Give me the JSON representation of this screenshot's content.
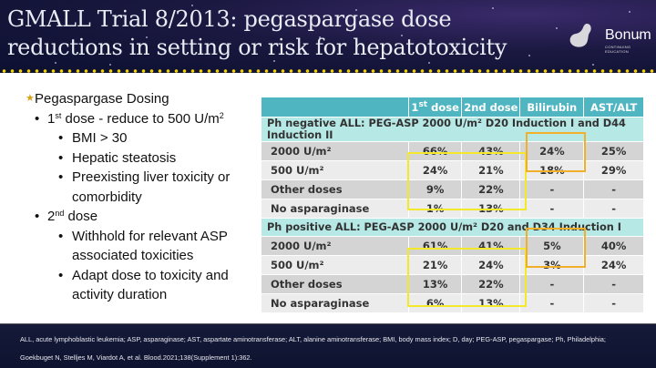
{
  "title": "GMALL Trial 8/2013: pegaspargase dose reductions in setting or risk for hepatotoxicity",
  "logo": {
    "name": "Bonum",
    "tagline": "CONTINUING EDUCATION"
  },
  "bullets": {
    "main": "Pegaspargase Dosing",
    "first": {
      "pre": "1",
      "sup": "st",
      "post": " dose - reduce to 500 U/m",
      "sup2": "2"
    },
    "first_items": [
      "BMI > 30",
      "Hepatic steatosis",
      "Preexisting liver toxicity or",
      "comorbidity"
    ],
    "second": {
      "pre": "2",
      "sup": "nd",
      "post": " dose"
    },
    "second_items": [
      "Withhold for relevant ASP",
      "associated toxicities",
      "Adapt dose to toxicity and",
      "activity duration"
    ]
  },
  "table": {
    "headers": {
      "c1_pre": "1",
      "c1_sup": "st",
      "c1_post": " dose",
      "c2": "2nd dose",
      "c3": "Bilirubin",
      "c4": "AST/ALT"
    },
    "sections": [
      {
        "title": "Ph negative ALL: PEG-ASP 2000 U/m² D20 Induction I and D44 Induction II",
        "rows": [
          [
            "2000 U/m²",
            "66%",
            "43%",
            "24%",
            "25%"
          ],
          [
            "500 U/m²",
            "24%",
            "21%",
            "18%",
            "29%"
          ],
          [
            "Other doses",
            "9%",
            "22%",
            "-",
            "-"
          ],
          [
            "No asparaginase",
            "1%",
            "13%",
            "-",
            "-"
          ]
        ]
      },
      {
        "title": "Ph positive ALL: PEG-ASP 2000 U/m² D20 and D34 Induction I",
        "rows": [
          [
            "2000 U/m²",
            "61%",
            "41%",
            "5%",
            "40%"
          ],
          [
            "500 U/m²",
            "21%",
            "24%",
            "3%",
            "24%"
          ],
          [
            "Other doses",
            "13%",
            "22%",
            "-",
            "-"
          ],
          [
            "No asparaginase",
            "6%",
            "13%",
            "-",
            "-"
          ]
        ]
      }
    ],
    "highlight_colors": {
      "yellow": "#f3e92a",
      "orange": "#f2b02a"
    }
  },
  "footer": {
    "abbrev": "ALL, acute lymphoblastic leukemia; ASP, asparaginase; AST, aspartate aminotransferase; ALT, alanine aminotransferase; BMI, body mass index; D, day; PEG-ASP, pegaspargase; Ph, Philadelphia;",
    "citation": "Goekbuget N, Stelljes M, Viardot A, et al. Blood.2021;138(Supplement 1):362."
  }
}
